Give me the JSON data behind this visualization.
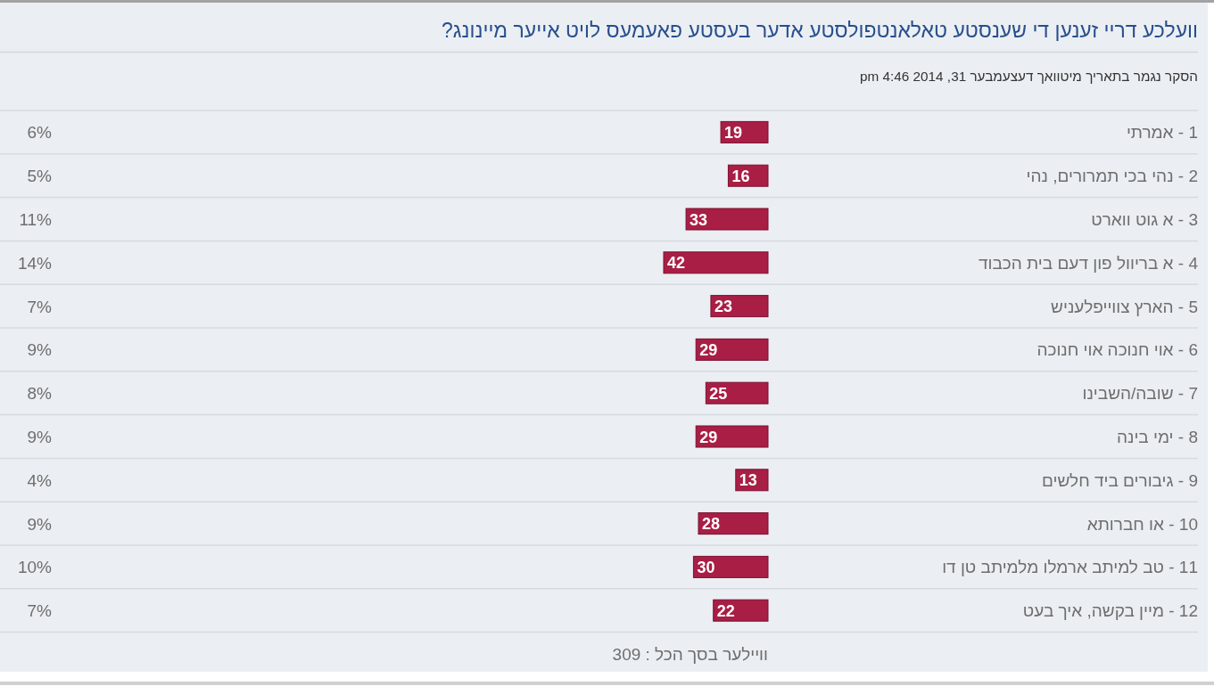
{
  "chart_data": {
    "type": "bar",
    "orientation": "horizontal",
    "title": "וועלכע דריי זענען די שענסטע טאלאנטפולסטע אדער בעסטע פאעמעס לויט אייער מיינונג?",
    "subtitle": "הסקר נגמר בתאריך מיטוואך דעצעמבער 31, 2014 4:46 pm",
    "categories": [
      "1 - אמרתי",
      "2 - נהי בכי תמרורים, נהי",
      "3 - א גוט ווארט",
      "4 - א בריוול פון דעם בית הכבוד",
      "5 - הארץ צווייפלעניש",
      "6 - אוי חנוכה אוי חנוכה",
      "7 - שובה/השבינו",
      "8 - ימי בינה",
      "9 - גיבורים ביד חלשים",
      "10 - או חברותא",
      "11 - טב למיתב ארמלו מלמיתב טן דו",
      "12 - מיין בקשה, איך בעט"
    ],
    "values": [
      19,
      16,
      33,
      42,
      23,
      29,
      25,
      29,
      13,
      28,
      30,
      22
    ],
    "color": "#a91e44",
    "data_labels": true,
    "annotations": [
      "6%",
      "5%",
      "11%",
      "14%",
      "7%",
      "9%",
      "8%",
      "9%",
      "4%",
      "9%",
      "10%",
      "7%",
      "וויילער בסך הכל : 309"
    ]
  }
}
